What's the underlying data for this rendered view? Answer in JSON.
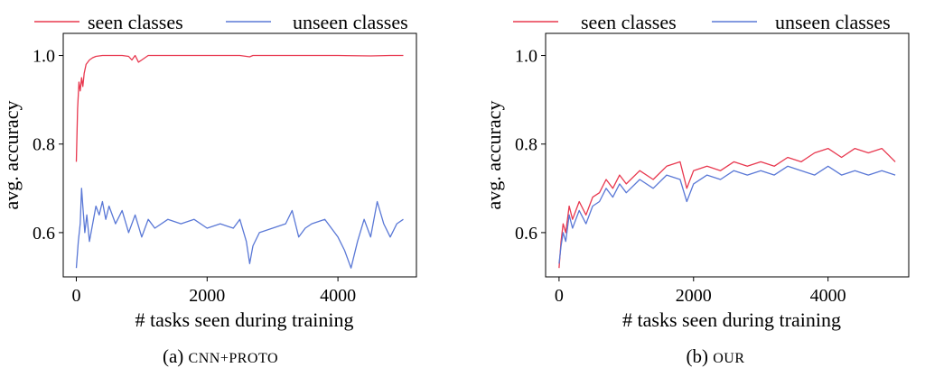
{
  "chart_data": [
    {
      "type": "line",
      "caption_prefix": "(a)",
      "caption_method": "CNN+PROTO",
      "xlabel": "# tasks seen during training",
      "ylabel": "avg. accuracy",
      "xlim": [
        -200,
        5200
      ],
      "ylim": [
        0.5,
        1.05
      ],
      "x_ticks": [
        0,
        2000,
        4000
      ],
      "x_tick_labels": [
        "0",
        "2000",
        "4000"
      ],
      "y_ticks": [
        0.6,
        0.8,
        1.0
      ],
      "y_tick_labels": [
        "0.6",
        "0.8",
        "1.0"
      ],
      "grid": false,
      "legend_position": "top (above plot)",
      "series": [
        {
          "name": "seen classes",
          "color": "#e8384f",
          "x": [
            0,
            20,
            40,
            60,
            80,
            100,
            120,
            150,
            200,
            250,
            300,
            400,
            500,
            600,
            700,
            800,
            850,
            900,
            950,
            1000,
            1100,
            1500,
            2000,
            2500,
            2650,
            2700,
            3000,
            3500,
            4000,
            4500,
            4800,
            5000
          ],
          "y": [
            0.76,
            0.88,
            0.94,
            0.92,
            0.95,
            0.93,
            0.96,
            0.98,
            0.99,
            0.995,
            0.998,
            1.0,
            1.0,
            1.0,
            1.0,
            0.998,
            0.99,
            1.0,
            0.985,
            0.99,
            1.0,
            1.0,
            1.0,
            1.0,
            0.997,
            1.0,
            1.0,
            1.0,
            1.0,
            0.999,
            1.0,
            1.0
          ]
        },
        {
          "name": "unseen classes",
          "color": "#5a78d6",
          "x": [
            0,
            30,
            60,
            80,
            100,
            130,
            160,
            200,
            250,
            300,
            350,
            400,
            450,
            500,
            600,
            700,
            800,
            900,
            1000,
            1100,
            1200,
            1400,
            1600,
            1800,
            2000,
            2200,
            2400,
            2500,
            2600,
            2650,
            2700,
            2800,
            3000,
            3200,
            3300,
            3400,
            3500,
            3600,
            3800,
            4000,
            4100,
            4200,
            4300,
            4400,
            4500,
            4600,
            4700,
            4800,
            4900,
            5000
          ],
          "y": [
            0.52,
            0.58,
            0.62,
            0.7,
            0.66,
            0.6,
            0.64,
            0.58,
            0.62,
            0.66,
            0.64,
            0.67,
            0.63,
            0.66,
            0.62,
            0.65,
            0.6,
            0.64,
            0.59,
            0.63,
            0.61,
            0.63,
            0.62,
            0.63,
            0.61,
            0.62,
            0.61,
            0.63,
            0.58,
            0.53,
            0.57,
            0.6,
            0.61,
            0.62,
            0.65,
            0.59,
            0.61,
            0.62,
            0.63,
            0.59,
            0.56,
            0.52,
            0.58,
            0.63,
            0.59,
            0.67,
            0.62,
            0.59,
            0.62,
            0.63
          ]
        }
      ]
    },
    {
      "type": "line",
      "caption_prefix": "(b)",
      "caption_method": "OUR",
      "xlabel": "# tasks seen during training",
      "ylabel": "avg. accuracy",
      "xlim": [
        -200,
        5200
      ],
      "ylim": [
        0.5,
        1.05
      ],
      "x_ticks": [
        0,
        2000,
        4000
      ],
      "x_tick_labels": [
        "0",
        "2000",
        "4000"
      ],
      "y_ticks": [
        0.6,
        0.8,
        1.0
      ],
      "y_tick_labels": [
        "0.6",
        "0.8",
        "1.0"
      ],
      "grid": false,
      "legend_position": "top (above plot)",
      "series": [
        {
          "name": "seen classes",
          "color": "#e8384f",
          "x": [
            0,
            30,
            60,
            100,
            150,
            200,
            300,
            400,
            500,
            600,
            700,
            800,
            900,
            1000,
            1200,
            1400,
            1600,
            1800,
            1900,
            2000,
            2200,
            2400,
            2600,
            2800,
            3000,
            3200,
            3400,
            3600,
            3800,
            4000,
            4200,
            4400,
            4600,
            4800,
            5000
          ],
          "y": [
            0.52,
            0.58,
            0.62,
            0.6,
            0.66,
            0.63,
            0.67,
            0.64,
            0.68,
            0.69,
            0.72,
            0.7,
            0.73,
            0.71,
            0.74,
            0.72,
            0.75,
            0.76,
            0.7,
            0.74,
            0.75,
            0.74,
            0.76,
            0.75,
            0.76,
            0.75,
            0.77,
            0.76,
            0.78,
            0.79,
            0.77,
            0.79,
            0.78,
            0.79,
            0.76
          ]
        },
        {
          "name": "unseen classes",
          "color": "#5a78d6",
          "x": [
            0,
            30,
            60,
            100,
            150,
            200,
            300,
            400,
            500,
            600,
            700,
            800,
            900,
            1000,
            1200,
            1400,
            1600,
            1800,
            1900,
            2000,
            2200,
            2400,
            2600,
            2800,
            3000,
            3200,
            3400,
            3600,
            3800,
            4000,
            4200,
            4400,
            4600,
            4800,
            5000
          ],
          "y": [
            0.53,
            0.57,
            0.6,
            0.58,
            0.64,
            0.61,
            0.65,
            0.62,
            0.66,
            0.67,
            0.7,
            0.68,
            0.71,
            0.69,
            0.72,
            0.7,
            0.73,
            0.72,
            0.67,
            0.71,
            0.73,
            0.72,
            0.74,
            0.73,
            0.74,
            0.73,
            0.75,
            0.74,
            0.73,
            0.75,
            0.73,
            0.74,
            0.73,
            0.74,
            0.73
          ]
        }
      ]
    }
  ]
}
